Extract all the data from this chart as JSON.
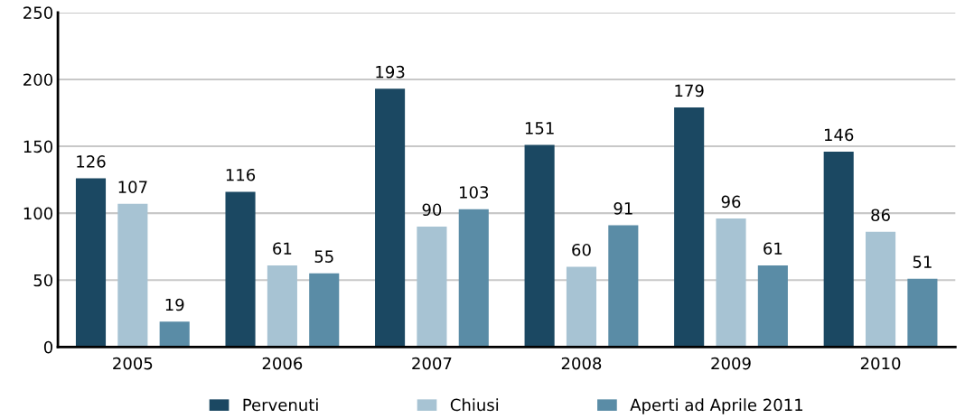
{
  "chart_data": {
    "type": "bar",
    "categories": [
      "2005",
      "2006",
      "2007",
      "2008",
      "2009",
      "2010"
    ],
    "series": [
      {
        "name": "Pervenuti",
        "color": "#1b4862",
        "values": [
          126,
          116,
          193,
          151,
          179,
          146
        ]
      },
      {
        "name": "Chiusi",
        "color": "#a7c3d3",
        "values": [
          107,
          61,
          90,
          60,
          96,
          86
        ]
      },
      {
        "name": "Aperti ad Aprile 2011",
        "color": "#5a8ca6",
        "values": [
          19,
          55,
          103,
          91,
          61,
          51
        ]
      }
    ],
    "ylim": [
      0,
      250
    ],
    "yticks": [
      0,
      50,
      100,
      150,
      200,
      250
    ],
    "grid": "y",
    "legend": "bottom",
    "data_labels": true
  }
}
